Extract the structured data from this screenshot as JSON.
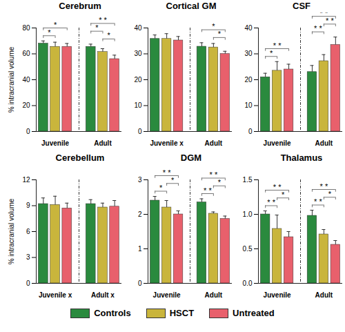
{
  "chart_data": [
    {
      "type": "bar",
      "title": "Cerebrum",
      "ylabel": "% intracranial volume",
      "categories": [
        "Juvenile",
        "Adult"
      ],
      "ylim": [
        0,
        80
      ],
      "yticks": [
        0,
        20,
        40,
        60,
        80
      ],
      "series": [
        {
          "name": "Controls",
          "color": "#2a8a3e",
          "values": [
            68,
            65.5
          ],
          "errors": [
            2,
            2
          ]
        },
        {
          "name": "HSCT",
          "color": "#c9b53c",
          "values": [
            65.5,
            61.5
          ],
          "errors": [
            3.5,
            2.5
          ]
        },
        {
          "name": "Untreated",
          "color": "#e8606c",
          "values": [
            65.5,
            56
          ],
          "errors": [
            2.5,
            3
          ]
        }
      ],
      "annotations": [
        {
          "group": 0,
          "from": "Controls",
          "to": "HSCT",
          "label": "*"
        },
        {
          "group": 0,
          "from": "Controls",
          "to": "Untreated",
          "label": "*"
        },
        {
          "group": 1,
          "from": "HSCT",
          "to": "Untreated",
          "label": "*"
        },
        {
          "group": 1,
          "from": "Controls",
          "to": "HSCT",
          "label": "*"
        },
        {
          "group": 1,
          "from": "Controls",
          "to": "Untreated",
          "label": "* *"
        }
      ]
    },
    {
      "type": "bar",
      "title": "Cortical GM",
      "categories": [
        "Juvenile x",
        "Adult"
      ],
      "ylim": [
        0,
        40
      ],
      "yticks": [
        0,
        10,
        20,
        30,
        40
      ],
      "series": [
        {
          "name": "Controls",
          "color": "#2a8a3e",
          "values": [
            35.8,
            32.8
          ],
          "errors": [
            1.5,
            1.5
          ]
        },
        {
          "name": "HSCT",
          "color": "#c9b53c",
          "values": [
            35.8,
            32.5
          ],
          "errors": [
            2,
            1.5
          ]
        },
        {
          "name": "Untreated",
          "color": "#e8606c",
          "values": [
            35.2,
            30
          ],
          "errors": [
            1.5,
            1
          ]
        }
      ],
      "annotations": [
        {
          "group": 1,
          "from": "HSCT",
          "to": "Untreated",
          "label": "*"
        },
        {
          "group": 1,
          "from": "Controls",
          "to": "Untreated",
          "label": "*"
        }
      ]
    },
    {
      "type": "bar",
      "title": "CSF",
      "categories": [
        "Juvenile",
        "Adult"
      ],
      "ylim": [
        0,
        40
      ],
      "yticks": [
        0,
        10,
        20,
        30,
        40
      ],
      "series": [
        {
          "name": "Controls",
          "color": "#2a8a3e",
          "values": [
            21,
            23
          ],
          "errors": [
            1.5,
            2.5
          ]
        },
        {
          "name": "HSCT",
          "color": "#c9b53c",
          "values": [
            23.5,
            27.2
          ],
          "errors": [
            3.5,
            2.5
          ]
        },
        {
          "name": "Untreated",
          "color": "#e8606c",
          "values": [
            24,
            33.5
          ],
          "errors": [
            2,
            3
          ]
        }
      ],
      "annotations": [
        {
          "group": 0,
          "from": "Controls",
          "to": "HSCT",
          "label": "*"
        },
        {
          "group": 0,
          "from": "Controls",
          "to": "Untreated",
          "label": "* *"
        },
        {
          "group": 1,
          "from": "Controls",
          "to": "HSCT",
          "label": "* *"
        },
        {
          "group": 1,
          "from": "HSCT",
          "to": "Untreated",
          "label": "* *"
        },
        {
          "group": 1,
          "from": "Controls",
          "to": "Untreated",
          "label": "* *"
        }
      ]
    },
    {
      "type": "bar",
      "title": "Cerebellum",
      "ylabel": "% intracranial volume",
      "categories": [
        "Juvenile x",
        "Adult x"
      ],
      "ylim": [
        0,
        12
      ],
      "yticks": [
        0,
        3,
        6,
        9,
        12
      ],
      "series": [
        {
          "name": "Controls",
          "color": "#2a8a3e",
          "values": [
            9.2,
            9.2
          ],
          "errors": [
            0.7,
            0.5
          ]
        },
        {
          "name": "HSCT",
          "color": "#c9b53c",
          "values": [
            9.1,
            8.8
          ],
          "errors": [
            1.0,
            0.5
          ]
        },
        {
          "name": "Untreated",
          "color": "#e8606c",
          "values": [
            8.7,
            8.9
          ],
          "errors": [
            0.6,
            0.7
          ]
        }
      ],
      "annotations": []
    },
    {
      "type": "bar",
      "title": "DGM",
      "categories": [
        "Juvenile",
        "Adult"
      ],
      "ylim": [
        0,
        3
      ],
      "yticks": [
        0,
        1,
        2,
        3
      ],
      "series": [
        {
          "name": "Controls",
          "color": "#2a8a3e",
          "values": [
            2.4,
            2.35
          ],
          "errors": [
            0.12,
            0.1
          ]
        },
        {
          "name": "HSCT",
          "color": "#c9b53c",
          "values": [
            2.2,
            2.02
          ],
          "errors": [
            0.2,
            0.05
          ]
        },
        {
          "name": "Untreated",
          "color": "#e8606c",
          "values": [
            2.0,
            1.87
          ],
          "errors": [
            0.1,
            0.08
          ]
        }
      ],
      "annotations": [
        {
          "group": 0,
          "from": "Controls",
          "to": "HSCT",
          "label": "*"
        },
        {
          "group": 0,
          "from": "HSCT",
          "to": "Untreated",
          "label": "*"
        },
        {
          "group": 0,
          "from": "Controls",
          "to": "Untreated",
          "label": "* *"
        },
        {
          "group": 1,
          "from": "Controls",
          "to": "HSCT",
          "label": "* *"
        },
        {
          "group": 1,
          "from": "HSCT",
          "to": "Untreated",
          "label": "*"
        },
        {
          "group": 1,
          "from": "Controls",
          "to": "Untreated",
          "label": "* *"
        }
      ]
    },
    {
      "type": "bar",
      "title": "Thalamus",
      "categories": [
        "Juvenile",
        "Adult"
      ],
      "ylim": [
        0,
        1.5
      ],
      "yticks": [
        {
          "value": 0,
          "label": "0.0"
        },
        {
          "value": 0.5,
          "label": "0.5"
        },
        {
          "value": 1,
          "label": "1.0"
        },
        {
          "value": 1.5,
          "label": "1.5"
        }
      ],
      "series": [
        {
          "name": "Controls",
          "color": "#2a8a3e",
          "values": [
            1.0,
            0.98
          ],
          "errors": [
            0.05,
            0.08
          ]
        },
        {
          "name": "HSCT",
          "color": "#c9b53c",
          "values": [
            0.79,
            0.71
          ],
          "errors": [
            0.2,
            0.07
          ]
        },
        {
          "name": "Untreated",
          "color": "#e8606c",
          "values": [
            0.67,
            0.56
          ],
          "errors": [
            0.08,
            0.06
          ]
        }
      ],
      "annotations": [
        {
          "group": 0,
          "from": "Controls",
          "to": "HSCT",
          "label": "* *"
        },
        {
          "group": 0,
          "from": "HSCT",
          "to": "Untreated",
          "label": "*"
        },
        {
          "group": 0,
          "from": "Controls",
          "to": "Untreated",
          "label": "* *"
        },
        {
          "group": 1,
          "from": "Controls",
          "to": "HSCT",
          "label": "* *"
        },
        {
          "group": 1,
          "from": "HSCT",
          "to": "Untreated",
          "label": "*"
        },
        {
          "group": 1,
          "from": "Controls",
          "to": "Untreated",
          "label": "* *"
        }
      ]
    }
  ]
}
